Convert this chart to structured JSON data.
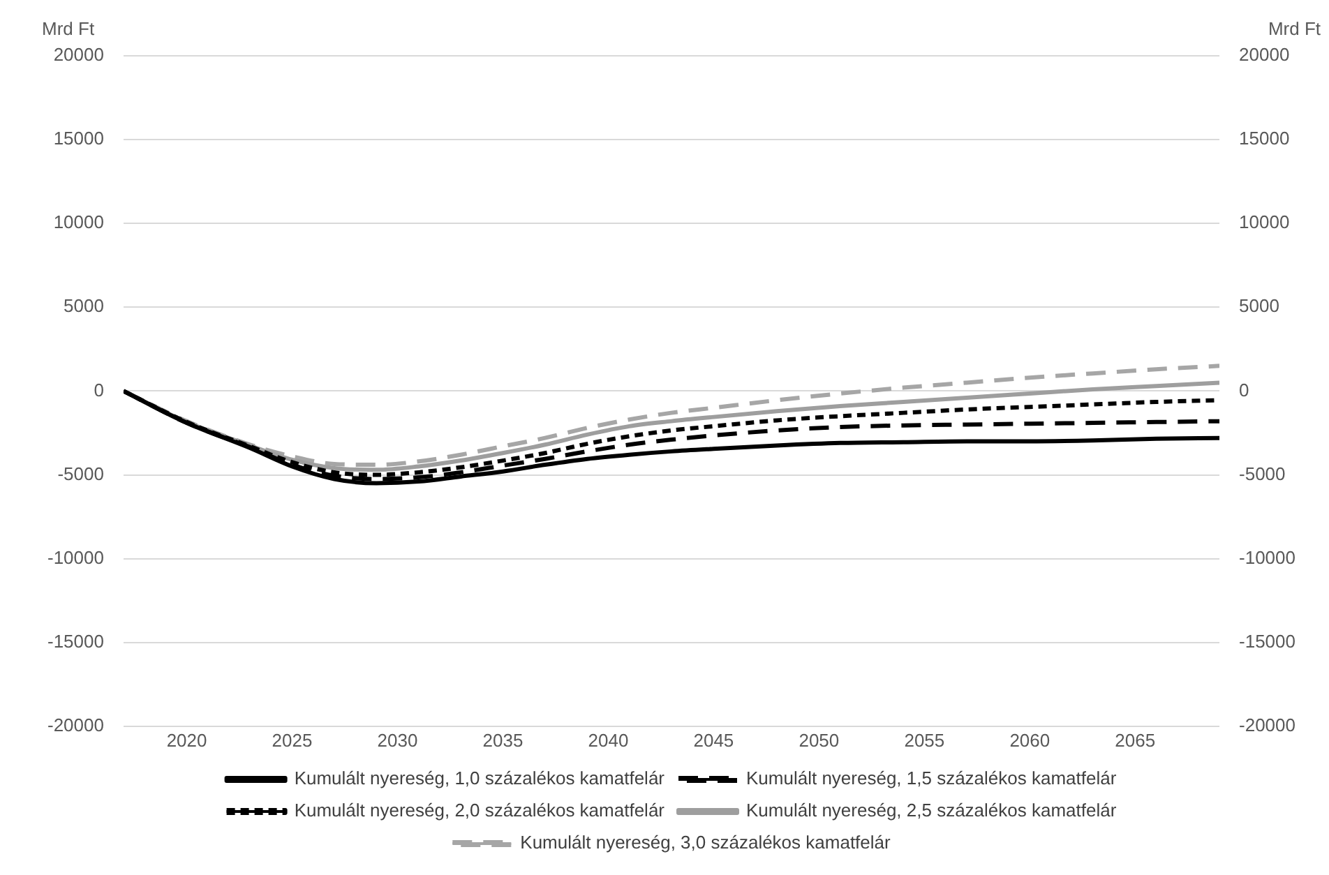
{
  "chart_data": {
    "type": "line",
    "ylabel": "Mrd Ft",
    "y2label": "Mrd Ft",
    "x": [
      2017,
      2020,
      2023,
      2025,
      2027,
      2029,
      2031,
      2033,
      2035,
      2037,
      2039,
      2041,
      2043,
      2045,
      2048,
      2051,
      2054,
      2057,
      2060,
      2063,
      2066,
      2069
    ],
    "xlim": [
      2017,
      2069
    ],
    "xticks": [
      2020,
      2025,
      2030,
      2035,
      2040,
      2045,
      2050,
      2055,
      2060,
      2065
    ],
    "ylim": [
      -20000,
      20000
    ],
    "yticks": [
      -20000,
      -15000,
      -10000,
      -5000,
      0,
      5000,
      10000,
      15000,
      20000
    ],
    "y2lim": [
      -20000,
      20000
    ],
    "y2ticks": [
      -20000,
      -15000,
      -10000,
      -5000,
      0,
      5000,
      10000,
      15000,
      20000
    ],
    "grid": "y",
    "legend": "bottom",
    "marker": "none",
    "series": [
      {
        "name": "Kumulált nyereség, 1,0 százalékos kamatfelár",
        "color": "#000000",
        "line_style": "solid",
        "values": [
          0,
          -1900,
          -3400,
          -4500,
          -5250,
          -5500,
          -5400,
          -5100,
          -4800,
          -4400,
          -4050,
          -3800,
          -3600,
          -3450,
          -3250,
          -3100,
          -3050,
          -3000,
          -3000,
          -2950,
          -2850,
          -2800
        ]
      },
      {
        "name": "Kumulált nyereség, 1,5 százalékos kamatfelár",
        "color": "#000000",
        "line_style": "dashed",
        "values": [
          0,
          -1900,
          -3350,
          -4400,
          -5050,
          -5250,
          -5150,
          -4850,
          -4450,
          -4050,
          -3600,
          -3200,
          -2900,
          -2650,
          -2350,
          -2150,
          -2050,
          -2000,
          -1950,
          -1900,
          -1850,
          -1800
        ]
      },
      {
        "name": "Kumulált nyereség, 2,0 százalékos kamatfelár",
        "color": "#000000",
        "line_style": "dotted",
        "values": [
          0,
          -1850,
          -3300,
          -4250,
          -4850,
          -5000,
          -4850,
          -4550,
          -4150,
          -3700,
          -3150,
          -2700,
          -2350,
          -2100,
          -1750,
          -1500,
          -1300,
          -1100,
          -950,
          -800,
          -650,
          -550
        ]
      },
      {
        "name": "Kumulált nyereség, 2,5 százalékos kamatfelár",
        "color": "#9e9e9e",
        "line_style": "solid",
        "values": [
          0,
          -1850,
          -3250,
          -4100,
          -4600,
          -4700,
          -4500,
          -4150,
          -3700,
          -3200,
          -2600,
          -2100,
          -1800,
          -1550,
          -1200,
          -900,
          -650,
          -400,
          -150,
          100,
          300,
          500
        ]
      },
      {
        "name": "Kumulált nyereség, 3,0 százalékos kamatfelár",
        "color": "#a6a6a6",
        "line_style": "dashed",
        "values": [
          0,
          -1800,
          -3200,
          -3900,
          -4350,
          -4400,
          -4200,
          -3800,
          -3300,
          -2800,
          -2200,
          -1700,
          -1300,
          -1000,
          -550,
          -150,
          200,
          500,
          800,
          1050,
          1300,
          1500
        ]
      }
    ]
  }
}
